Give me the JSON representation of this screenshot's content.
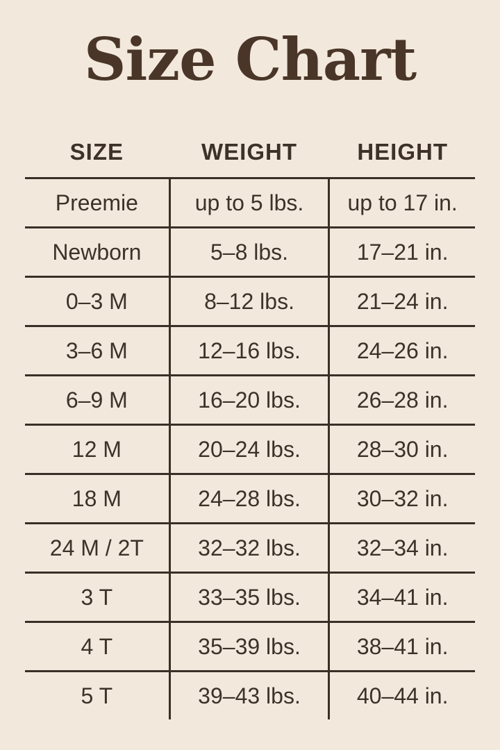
{
  "colors": {
    "background": "#f2e9dc",
    "title": "#4a3629",
    "text": "#3d3128",
    "line": "#3a2f26"
  },
  "chart_data": {
    "type": "table",
    "title": "Size Chart",
    "columns": [
      "SIZE",
      "WEIGHT",
      "HEIGHT"
    ],
    "rows": [
      {
        "size": "Preemie",
        "weight": "up to 5 lbs.",
        "height": "up to 17 in."
      },
      {
        "size": "Newborn",
        "weight": "5–8 lbs.",
        "height": "17–21 in."
      },
      {
        "size": "0–3 M",
        "weight": "8–12 lbs.",
        "height": "21–24 in."
      },
      {
        "size": "3–6 M",
        "weight": "12–16 lbs.",
        "height": "24–26 in."
      },
      {
        "size": "6–9 M",
        "weight": "16–20 lbs.",
        "height": "26–28 in."
      },
      {
        "size": "12 M",
        "weight": "20–24 lbs.",
        "height": "28–30 in."
      },
      {
        "size": "18 M",
        "weight": "24–28 lbs.",
        "height": "30–32 in."
      },
      {
        "size": "24 M / 2T",
        "weight": "32–32 lbs.",
        "height": "32–34 in."
      },
      {
        "size": "3 T",
        "weight": "33–35 lbs.",
        "height": "34–41 in."
      },
      {
        "size": "4 T",
        "weight": "35–39 lbs.",
        "height": "38–41 in."
      },
      {
        "size": "5 T",
        "weight": "39–43 lbs.",
        "height": "40–44 in."
      }
    ]
  }
}
